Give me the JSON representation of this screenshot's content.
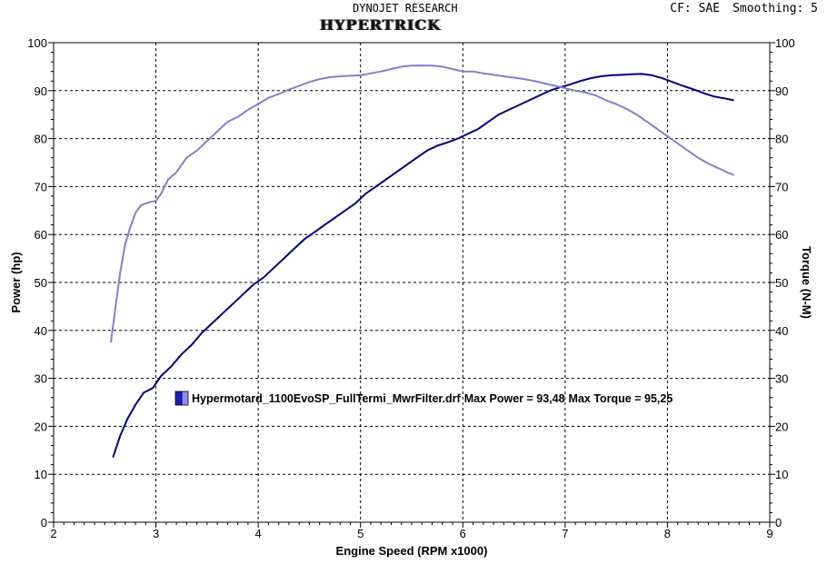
{
  "header": {
    "lab": "DYNOJET RESEARCH",
    "title": "HYPERTRICK",
    "cf_label": "CF: SAE",
    "smoothing_label": "Smoothing: 5"
  },
  "legend": {
    "file": "Hypermotard_1100EvoSP_FullTermi_MwrFilter.drf",
    "max_power_label": "Max Power = 93,48",
    "max_torque_label": "Max Torque = 95,25",
    "swatch_colors": [
      "#1a1acc",
      "#8c8cff"
    ]
  },
  "chart_data": {
    "type": "line",
    "xlabel": "Engine Speed (RPM x1000)",
    "ylabel_left": "Power (hp)",
    "ylabel_right": "Torque (N-M)",
    "xlim": [
      2,
      9
    ],
    "ylim_left": [
      0,
      100
    ],
    "ylim_right": [
      0,
      100
    ],
    "x_ticks": [
      2,
      3,
      4,
      5,
      6,
      7,
      8,
      9
    ],
    "y_ticks": [
      0,
      10,
      20,
      30,
      40,
      50,
      60,
      70,
      80,
      90,
      100
    ],
    "grid": true,
    "series": [
      {
        "name": "Power",
        "axis": "left",
        "color": "#000080",
        "x": [
          2.58,
          2.65,
          2.72,
          2.8,
          2.88,
          2.97,
          3.05,
          3.15,
          3.25,
          3.35,
          3.45,
          3.55,
          3.65,
          3.75,
          3.85,
          3.95,
          4.05,
          4.15,
          4.25,
          4.35,
          4.45,
          4.55,
          4.65,
          4.75,
          4.85,
          4.95,
          5.05,
          5.15,
          5.25,
          5.35,
          5.45,
          5.55,
          5.65,
          5.75,
          5.85,
          5.95,
          6.05,
          6.15,
          6.25,
          6.35,
          6.45,
          6.55,
          6.65,
          6.75,
          6.85,
          6.95,
          7.05,
          7.15,
          7.25,
          7.35,
          7.45,
          7.55,
          7.65,
          7.75,
          7.85,
          7.95,
          8.05,
          8.15,
          8.25,
          8.35,
          8.45,
          8.55,
          8.65
        ],
        "values": [
          13.5,
          18.0,
          21.5,
          24.5,
          27.0,
          28.0,
          30.5,
          32.5,
          35.0,
          37.0,
          39.5,
          41.5,
          43.5,
          45.5,
          47.5,
          49.5,
          51.0,
          53.0,
          55.0,
          57.0,
          59.0,
          60.5,
          62.0,
          63.5,
          65.0,
          66.5,
          68.5,
          70.0,
          71.5,
          73.0,
          74.5,
          76.0,
          77.5,
          78.5,
          79.2,
          80.0,
          81.0,
          82.0,
          83.5,
          85.0,
          86.0,
          87.0,
          88.0,
          89.0,
          90.0,
          90.7,
          91.3,
          92.0,
          92.6,
          93.0,
          93.2,
          93.3,
          93.4,
          93.48,
          93.2,
          92.6,
          91.8,
          91.0,
          90.3,
          89.5,
          88.8,
          88.4,
          88.0
        ]
      },
      {
        "name": "Torque",
        "axis": "right",
        "color": "#8080cc",
        "x": [
          2.56,
          2.6,
          2.65,
          2.7,
          2.75,
          2.8,
          2.85,
          2.9,
          2.95,
          3.0,
          3.05,
          3.12,
          3.2,
          3.3,
          3.4,
          3.5,
          3.6,
          3.7,
          3.8,
          3.9,
          4.0,
          4.1,
          4.2,
          4.3,
          4.4,
          4.5,
          4.6,
          4.7,
          4.8,
          4.9,
          5.0,
          5.1,
          5.2,
          5.3,
          5.4,
          5.5,
          5.6,
          5.7,
          5.8,
          5.9,
          6.0,
          6.1,
          6.2,
          6.3,
          6.4,
          6.5,
          6.6,
          6.7,
          6.8,
          6.9,
          7.0,
          7.1,
          7.2,
          7.3,
          7.4,
          7.5,
          7.6,
          7.7,
          7.8,
          7.9,
          8.0,
          8.1,
          8.2,
          8.3,
          8.4,
          8.5,
          8.6,
          8.65
        ],
        "values": [
          37.5,
          44.0,
          52.0,
          58.0,
          61.5,
          64.5,
          66.0,
          66.5,
          66.8,
          67.0,
          68.5,
          71.5,
          73.0,
          76.0,
          77.5,
          79.5,
          81.5,
          83.5,
          84.5,
          86.0,
          87.2,
          88.5,
          89.3,
          90.2,
          91.0,
          91.8,
          92.4,
          92.8,
          93.0,
          93.1,
          93.2,
          93.6,
          94.0,
          94.5,
          95.0,
          95.2,
          95.25,
          95.2,
          95.0,
          94.5,
          94.0,
          94.0,
          93.6,
          93.3,
          93.0,
          92.7,
          92.4,
          92.0,
          91.5,
          91.0,
          90.5,
          90.0,
          89.6,
          89.0,
          88.0,
          87.2,
          86.2,
          85.0,
          83.5,
          82.0,
          80.5,
          79.0,
          77.5,
          76.0,
          74.8,
          73.8,
          72.8,
          72.4
        ]
      }
    ]
  }
}
